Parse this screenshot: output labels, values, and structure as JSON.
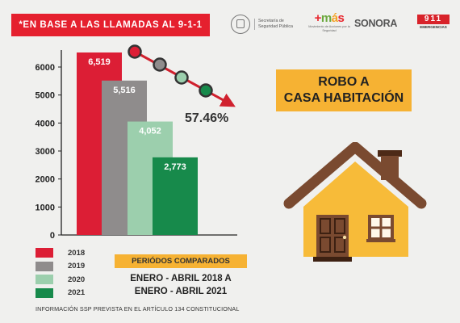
{
  "header": {
    "banner_text": "*EN BASE A LAS LLAMADAS AL 9-1-1",
    "logos": {
      "ssp_text": "Secretaría de Seguridad Pública",
      "mas_text": "+más",
      "mas_sub": "Movimiento de Acciones por la Seguridad",
      "sonora_text": "SONORA",
      "n911_text": "911",
      "n911_sub": "EMERGENCIAS"
    }
  },
  "crime_title": {
    "line1": "ROBO A",
    "line2": "CASA HABITACIÓN"
  },
  "periods": {
    "title": "PERIÓDOS COMPARADOS",
    "line1": "ENERO - ABRIL 2018 A",
    "line2": "ENERO - ABRIL 2021"
  },
  "footnote": "INFORMACIÓN SSP PREVISTA EN EL ARTÍCULO 134 CONSTITUCIONAL",
  "chart_data": {
    "type": "bar",
    "categories": [
      "2018",
      "2019",
      "2020",
      "2021"
    ],
    "values": [
      6519,
      5516,
      4052,
      2773
    ],
    "value_labels": [
      "6,519",
      "5,516",
      "4,052",
      "2,773"
    ],
    "colors": [
      "#dc1e35",
      "#8f8c8c",
      "#9ccfad",
      "#178a4b"
    ],
    "ylim": [
      0,
      6000
    ],
    "yticks": [
      0,
      1000,
      2000,
      3000,
      4000,
      5000,
      6000
    ],
    "grid": false,
    "legend_position": "bottom-left",
    "annotation": "57.46%",
    "trend_arrow": {
      "direction": "down",
      "color": "#d0212e"
    }
  },
  "legend": [
    {
      "label": "2018",
      "color": "#dc1e35"
    },
    {
      "label": "2019",
      "color": "#8f8c8c"
    },
    {
      "label": "2020",
      "color": "#9ccfad"
    },
    {
      "label": "2021",
      "color": "#178a4b"
    }
  ]
}
